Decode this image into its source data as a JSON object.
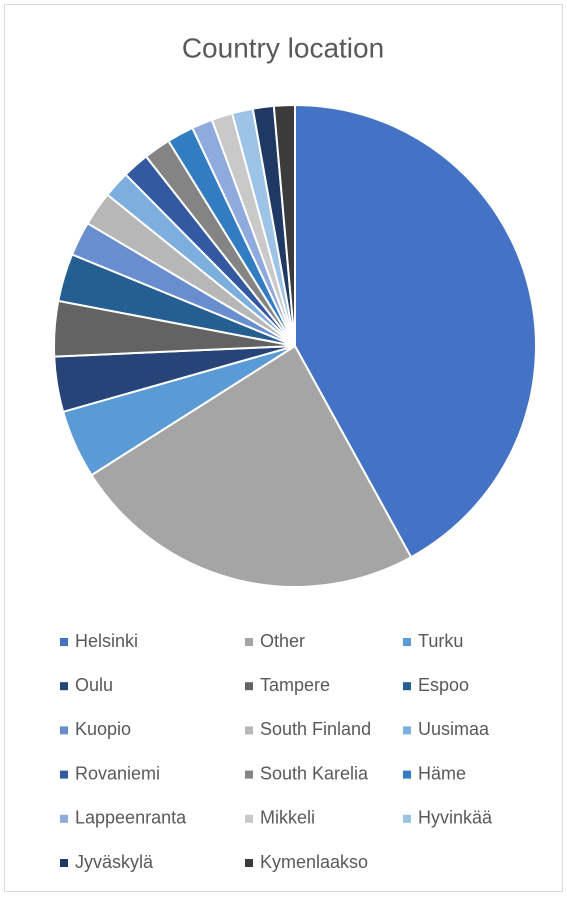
{
  "chart_data": {
    "type": "pie",
    "title": "Country location",
    "categories": [
      "Helsinki",
      "Other",
      "Turku",
      "Oulu",
      "Tampere",
      "Espoo",
      "Kuopio",
      "South Finland",
      "Uusimaa",
      "Rovaniemi",
      "South Karelia",
      "Häme",
      "Lappeenranta",
      "Mikkeli",
      "Hyvinkää",
      "Jyväskylä",
      "Kymenlaakso"
    ],
    "values": [
      42,
      24,
      4.6,
      3.7,
      3.7,
      3.2,
      2.3,
      2.3,
      1.8,
      1.8,
      1.8,
      1.8,
      1.4,
      1.4,
      1.4,
      1.4,
      1.4
    ],
    "colors": [
      "#4472c4",
      "#a5a5a5",
      "#5b9bd5",
      "#264478",
      "#636363",
      "#255e91",
      "#698ed0",
      "#b7b7b7",
      "#7cafdd",
      "#335aa1",
      "#848484",
      "#327dc2",
      "#8faadc",
      "#c9c9c9",
      "#9dc3e6",
      "#203864",
      "#3b3b3b"
    ],
    "legend": "bottom"
  }
}
